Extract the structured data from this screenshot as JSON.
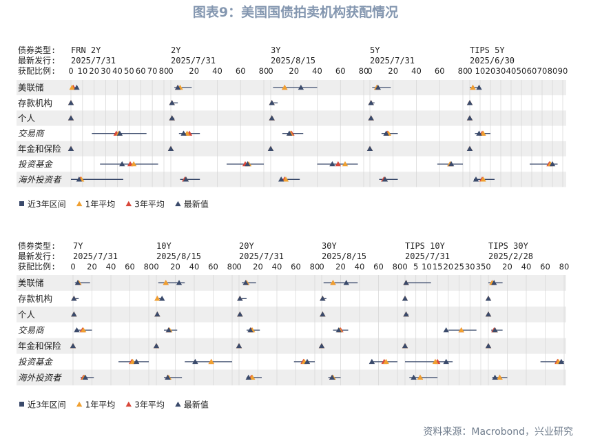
{
  "title": "图表9：美国国债拍卖机构获配情况",
  "source": "资料来源：Macrobond，兴业研究",
  "row_labels": {
    "type": "债券类型:",
    "date": "最新发行:",
    "ratio": "获配比例:"
  },
  "categories": [
    "美联储",
    "存款机构",
    "个人",
    "交易商",
    "年金和保险",
    "投资基金",
    "海外投资者"
  ],
  "category_italic": [
    false,
    false,
    false,
    true,
    false,
    true,
    true
  ],
  "legend": [
    {
      "name": "近3年区间",
      "symbol": "square",
      "color": "#3a4a6b"
    },
    {
      "name": "1年平均",
      "symbol": "triangle",
      "color": "#f0a030"
    },
    {
      "name": "3年平均",
      "symbol": "triangle",
      "color": "#d8473a"
    },
    {
      "name": "最新值",
      "symbol": "triangle",
      "color": "#3a4a6b"
    }
  ],
  "colors": {
    "range": "#3a4a6b",
    "avg1y": "#f0a030",
    "avg3y": "#d8473a",
    "latest": "#3a4a6b",
    "band": "#eeeeee",
    "grid": "#d4d4d4"
  },
  "chart_data": [
    {
      "type": "range-dot",
      "panels": [
        {
          "bond": "FRN 2Y",
          "date": "2025/7/31",
          "xlim": [
            0,
            80
          ],
          "ticks": [
            0,
            10,
            20,
            30,
            40,
            50,
            60,
            70,
            80
          ],
          "rows": [
            {
              "lo": 0,
              "hi": 6,
              "avg1y": 1,
              "avg3y": 2,
              "latest": 5
            },
            {
              "lo": 0,
              "hi": 0,
              "avg1y": 0,
              "avg3y": 0,
              "latest": 0
            },
            {
              "lo": 0,
              "hi": 0,
              "avg1y": 0,
              "avg3y": 0,
              "latest": 0
            },
            {
              "lo": 18,
              "hi": 65,
              "avg1y": 41,
              "avg3y": 39,
              "latest": 42
            },
            {
              "lo": 0,
              "hi": 1,
              "avg1y": 0,
              "avg3y": 0,
              "latest": 0
            },
            {
              "lo": 25,
              "hi": 75,
              "avg1y": 54,
              "avg3y": 51,
              "latest": 44
            },
            {
              "lo": 0,
              "hi": 45,
              "avg1y": 9,
              "avg3y": 8,
              "latest": 7
            }
          ]
        },
        {
          "bond": "2Y",
          "date": "2025/7/31",
          "xlim": [
            0,
            80
          ],
          "ticks": [
            0,
            20,
            40,
            60,
            80
          ],
          "rows": [
            {
              "lo": 3,
              "hi": 18,
              "avg1y": 8,
              "avg3y": 6,
              "latest": 6
            },
            {
              "lo": 0,
              "hi": 6,
              "avg1y": 1,
              "avg3y": 1,
              "latest": 1
            },
            {
              "lo": 0,
              "hi": 3,
              "avg1y": 1,
              "avg3y": 1,
              "latest": 1
            },
            {
              "lo": 7,
              "hi": 25,
              "avg1y": 14,
              "avg3y": 16,
              "latest": 11
            },
            {
              "lo": 0,
              "hi": 0,
              "avg1y": 0,
              "avg3y": 0,
              "latest": 0
            },
            {
              "lo": 48,
              "hi": 80,
              "avg1y": 67,
              "avg3y": 64,
              "latest": 66
            },
            {
              "lo": 8,
              "hi": 25,
              "avg1y": 13,
              "avg3y": 12,
              "latest": 13
            }
          ]
        },
        {
          "bond": "3Y",
          "date": "2025/8/15",
          "xlim": [
            0,
            80
          ],
          "ticks": [
            0,
            20,
            40,
            60,
            80
          ],
          "rows": [
            {
              "lo": 2,
              "hi": 40,
              "avg1y": 12,
              "avg3y": 12,
              "latest": 26
            },
            {
              "lo": 0,
              "hi": 6,
              "avg1y": 1,
              "avg3y": 1,
              "latest": 1
            },
            {
              "lo": 0,
              "hi": 2,
              "avg1y": 1,
              "avg3y": 1,
              "latest": 1
            },
            {
              "lo": 10,
              "hi": 28,
              "avg1y": 17,
              "avg3y": 18,
              "latest": 16
            },
            {
              "lo": 0,
              "hi": 0,
              "avg1y": 0,
              "avg3y": 0,
              "latest": 0
            },
            {
              "lo": 40,
              "hi": 75,
              "avg1y": 64,
              "avg3y": 58,
              "latest": 53
            },
            {
              "lo": 8,
              "hi": 25,
              "avg1y": 13,
              "avg3y": 12,
              "latest": 9
            }
          ]
        },
        {
          "bond": "5Y",
          "date": "2025/7/31",
          "xlim": [
            0,
            80
          ],
          "ticks": [
            0,
            20,
            40,
            60,
            80
          ],
          "rows": [
            {
              "lo": 2,
              "hi": 18,
              "avg1y": 6,
              "avg3y": 6,
              "latest": 7
            },
            {
              "lo": 0,
              "hi": 4,
              "avg1y": 1,
              "avg3y": 1,
              "latest": 1
            },
            {
              "lo": 0,
              "hi": 2,
              "avg1y": 1,
              "avg3y": 1,
              "latest": 1
            },
            {
              "lo": 10,
              "hi": 24,
              "avg1y": 16,
              "avg3y": 15,
              "latest": 14
            },
            {
              "lo": 0,
              "hi": 0,
              "avg1y": 0,
              "avg3y": 0,
              "latest": 0
            },
            {
              "lo": 58,
              "hi": 80,
              "avg1y": 69,
              "avg3y": 69,
              "latest": 70
            },
            {
              "lo": 8,
              "hi": 24,
              "avg1y": 13,
              "avg3y": 12,
              "latest": 13
            }
          ]
        },
        {
          "bond": "TIPS 5Y",
          "date": "2025/6/30",
          "xlim": [
            0,
            90
          ],
          "ticks": [
            0,
            10,
            20,
            30,
            40,
            50,
            60,
            70,
            80,
            90
          ],
          "rows": [
            {
              "lo": 0,
              "hi": 10,
              "avg1y": 3,
              "avg3y": 3,
              "latest": 9
            },
            {
              "lo": 0,
              "hi": 0,
              "avg1y": 0,
              "avg3y": 0,
              "latest": 0
            },
            {
              "lo": 0,
              "hi": 0,
              "avg1y": 0,
              "avg3y": 0,
              "latest": 0
            },
            {
              "lo": 5,
              "hi": 20,
              "avg1y": 13,
              "avg3y": 12,
              "latest": 9
            },
            {
              "lo": 0,
              "hi": 0,
              "avg1y": 0,
              "avg3y": 0,
              "latest": 0
            },
            {
              "lo": 58,
              "hi": 85,
              "avg1y": 78,
              "avg3y": 77,
              "latest": 80
            },
            {
              "lo": 4,
              "hi": 24,
              "avg1y": 13,
              "avg3y": 12,
              "latest": 6
            }
          ]
        }
      ]
    },
    {
      "type": "range-dot",
      "panels": [
        {
          "bond": "7Y",
          "date": "2025/7/31",
          "xlim": [
            0,
            80
          ],
          "ticks": [
            0,
            20,
            40,
            60,
            80
          ],
          "rows": [
            {
              "lo": 2,
              "hi": 18,
              "avg1y": 6,
              "avg3y": 6,
              "latest": 5
            },
            {
              "lo": 0,
              "hi": 6,
              "avg1y": 1,
              "avg3y": 1,
              "latest": 1
            },
            {
              "lo": 0,
              "hi": 2,
              "avg1y": 1,
              "avg3y": 1,
              "latest": 1
            },
            {
              "lo": 2,
              "hi": 20,
              "avg1y": 11,
              "avg3y": 10,
              "latest": 4
            },
            {
              "lo": 0,
              "hi": 0,
              "avg1y": 0,
              "avg3y": 0,
              "latest": 0
            },
            {
              "lo": 48,
              "hi": 80,
              "avg1y": 63,
              "avg3y": 62,
              "latest": 67
            },
            {
              "lo": 8,
              "hi": 22,
              "avg1y": 12,
              "avg3y": 11,
              "latest": 13
            }
          ]
        },
        {
          "bond": "10Y",
          "date": "2025/8/15",
          "xlim": [
            0,
            80
          ],
          "ticks": [
            0,
            20,
            40,
            60,
            80
          ],
          "rows": [
            {
              "lo": 2,
              "hi": 30,
              "avg1y": 10,
              "avg3y": 10,
              "latest": 24
            },
            {
              "lo": 0,
              "hi": 6,
              "avg1y": 1,
              "avg3y": 1,
              "latest": 6
            },
            {
              "lo": 0,
              "hi": 2,
              "avg1y": 1,
              "avg3y": 1,
              "latest": 1
            },
            {
              "lo": 8,
              "hi": 22,
              "avg1y": 14,
              "avg3y": 13,
              "latest": 13
            },
            {
              "lo": 0,
              "hi": 0,
              "avg1y": 0,
              "avg3y": 0,
              "latest": 0
            },
            {
              "lo": 30,
              "hi": 80,
              "avg1y": 58,
              "avg3y": 58,
              "latest": 41
            },
            {
              "lo": 8,
              "hi": 27,
              "avg1y": 13,
              "avg3y": 12,
              "latest": 12
            }
          ]
        },
        {
          "bond": "20Y",
          "date": "2025/7/31",
          "xlim": [
            0,
            80
          ],
          "ticks": [
            0,
            20,
            40,
            60,
            80
          ],
          "rows": [
            {
              "lo": 3,
              "hi": 18,
              "avg1y": 8,
              "avg3y": 8,
              "latest": 7
            },
            {
              "lo": 0,
              "hi": 8,
              "avg1y": 1,
              "avg3y": 1,
              "latest": 1
            },
            {
              "lo": 0,
              "hi": 2,
              "avg1y": 1,
              "avg3y": 1,
              "latest": 1
            },
            {
              "lo": 8,
              "hi": 22,
              "avg1y": 14,
              "avg3y": 13,
              "latest": 12
            },
            {
              "lo": 0,
              "hi": 0,
              "avg1y": 0,
              "avg3y": 0,
              "latest": 0
            },
            {
              "lo": 58,
              "hi": 80,
              "avg1y": 69,
              "avg3y": 68,
              "latest": 72
            },
            {
              "lo": 8,
              "hi": 24,
              "avg1y": 14,
              "avg3y": 13,
              "latest": 10
            }
          ]
        },
        {
          "bond": "30Y",
          "date": "2025/8/15",
          "xlim": [
            0,
            80
          ],
          "ticks": [
            0,
            20,
            40,
            60,
            80
          ],
          "rows": [
            {
              "lo": 2,
              "hi": 38,
              "avg1y": 12,
              "avg3y": 12,
              "latest": 26
            },
            {
              "lo": 0,
              "hi": 5,
              "avg1y": 1,
              "avg3y": 1,
              "latest": 1
            },
            {
              "lo": 0,
              "hi": 2,
              "avg1y": 1,
              "avg3y": 1,
              "latest": 1
            },
            {
              "lo": 12,
              "hi": 28,
              "avg1y": 19,
              "avg3y": 20,
              "latest": 18
            },
            {
              "lo": 0,
              "hi": 0,
              "avg1y": 0,
              "avg3y": 0,
              "latest": 0
            },
            {
              "lo": 52,
              "hi": 80,
              "avg1y": 68,
              "avg3y": 66,
              "latest": 53
            },
            {
              "lo": 7,
              "hi": 20,
              "avg1y": 12,
              "avg3y": 11,
              "latest": 11
            }
          ]
        },
        {
          "bond": "TIPS 10Y",
          "date": "2025/7/31",
          "xlim": [
            0,
            35
          ],
          "ticks": [
            0,
            5,
            10,
            15,
            20,
            25,
            30,
            35
          ],
          "rows": [
            {
              "lo": 0,
              "hi": 12,
              "avg1y": 0.5,
              "avg3y": 0.5,
              "latest": 0.5
            },
            {
              "lo": 0,
              "hi": 0,
              "avg1y": 0,
              "avg3y": 0,
              "latest": 0
            },
            {
              "lo": 0,
              "hi": 1.5,
              "avg1y": 0.5,
              "avg3y": 0.5,
              "latest": 0.5
            },
            {
              "lo": 20,
              "hi": 33,
              "avg1y": 26,
              "avg3y": 26,
              "latest": 19
            },
            {
              "lo": 0,
              "hi": 0,
              "avg1y": 0,
              "avg3y": 0,
              "latest": 0
            },
            {
              "lo": 0,
              "hi": 22,
              "avg1y": 14,
              "avg3y": 15,
              "latest": 19
            },
            {
              "lo": 2,
              "hi": 15,
              "avg1y": 7,
              "avg3y": 7,
              "latest": 4
            }
          ]
        },
        {
          "bond": "TIPS 30Y",
          "date": "2025/2/28",
          "xlim": [
            0,
            80
          ],
          "ticks": [
            0,
            20,
            40,
            60,
            80
          ],
          "rows": [
            {
              "lo": 0,
              "hi": 15,
              "avg1y": 4,
              "avg3y": 4,
              "latest": 6
            },
            {
              "lo": 0,
              "hi": 0,
              "avg1y": 0,
              "avg3y": 0,
              "latest": 0
            },
            {
              "lo": 0,
              "hi": 0,
              "avg1y": 0,
              "avg3y": 0,
              "latest": 0
            },
            {
              "lo": 3,
              "hi": 15,
              "avg1y": 7,
              "avg3y": 6,
              "latest": 7
            },
            {
              "lo": 0,
              "hi": 0,
              "avg1y": 0,
              "avg3y": 0,
              "latest": 0
            },
            {
              "lo": 55,
              "hi": 80,
              "avg1y": 74,
              "avg3y": 73,
              "latest": 77
            },
            {
              "lo": 4,
              "hi": 20,
              "avg1y": 12,
              "avg3y": 12,
              "latest": 7
            }
          ]
        }
      ]
    }
  ]
}
